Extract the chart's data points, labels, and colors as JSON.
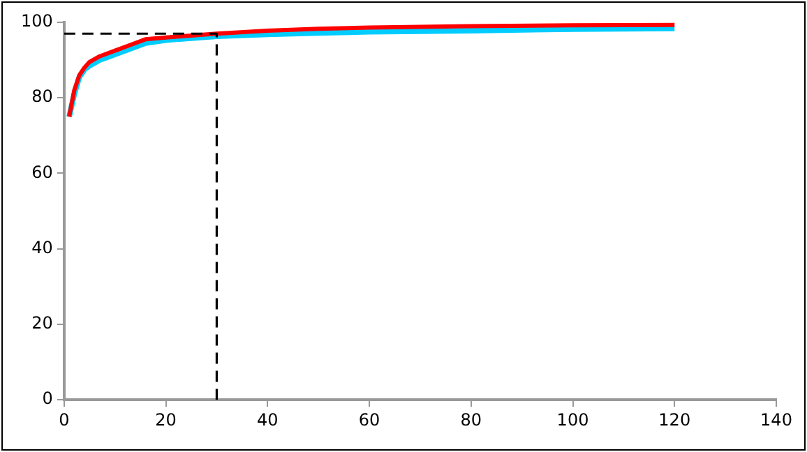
{
  "chart_data": {
    "type": "line",
    "xlim": [
      0,
      140
    ],
    "xticks": [
      0,
      20,
      40,
      60,
      80,
      100,
      120,
      140
    ],
    "ylim": [
      0,
      100
    ],
    "yticks": [
      0,
      20,
      40,
      60,
      80,
      100
    ],
    "grid": false,
    "legend": false,
    "marker": "none",
    "series": [
      {
        "color": "#00ccff",
        "x": [
          1,
          2,
          3,
          4,
          5,
          7,
          10,
          13,
          16,
          20,
          25,
          30,
          40,
          50,
          60,
          80,
          100,
          120
        ],
        "values": [
          75,
          81,
          85.5,
          87.5,
          88.5,
          90,
          91.5,
          93,
          94.5,
          95.3,
          95.8,
          96.3,
          96.8,
          97.2,
          97.5,
          97.8,
          98.2,
          98.4
        ]
      },
      {
        "color": "#ff0000",
        "x": [
          1,
          2,
          3,
          4,
          5,
          7,
          10,
          13,
          16,
          20,
          25,
          30,
          40,
          50,
          60,
          80,
          100,
          120
        ],
        "values": [
          75,
          82,
          86,
          88,
          89.5,
          91,
          92.5,
          94,
          95.5,
          96,
          96.5,
          97,
          97.8,
          98.3,
          98.6,
          99,
          99.2,
          99.3
        ]
      },
      {
        "color": "#000000",
        "line_style": "dashed",
        "x": [
          0,
          30,
          30
        ],
        "values": [
          97,
          97,
          0
        ]
      }
    ]
  }
}
